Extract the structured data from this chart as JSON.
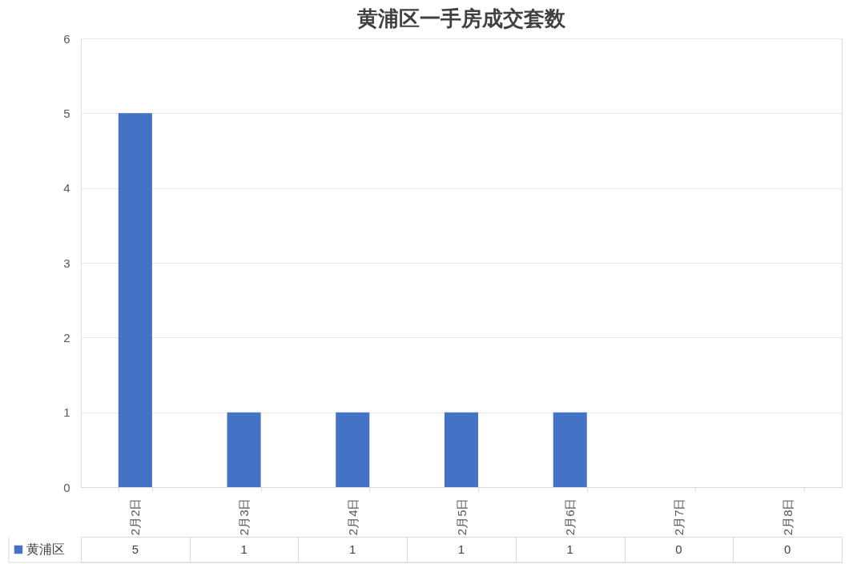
{
  "chart_data": {
    "type": "bar",
    "title": "黄浦区一手房成交套数",
    "categories": [
      "2月2日",
      "2月3日",
      "2月4日",
      "2月5日",
      "2月6日",
      "2月7日",
      "2月8日"
    ],
    "series": [
      {
        "name": "黄浦区",
        "color": "#4472c4",
        "values": [
          5,
          1,
          1,
          1,
          1,
          0,
          0
        ]
      }
    ],
    "ylim": [
      0,
      6
    ],
    "yticks": [
      0,
      1,
      2,
      3,
      4,
      5,
      6
    ],
    "grid": "y",
    "legend": "bottom",
    "data_labels": true
  }
}
